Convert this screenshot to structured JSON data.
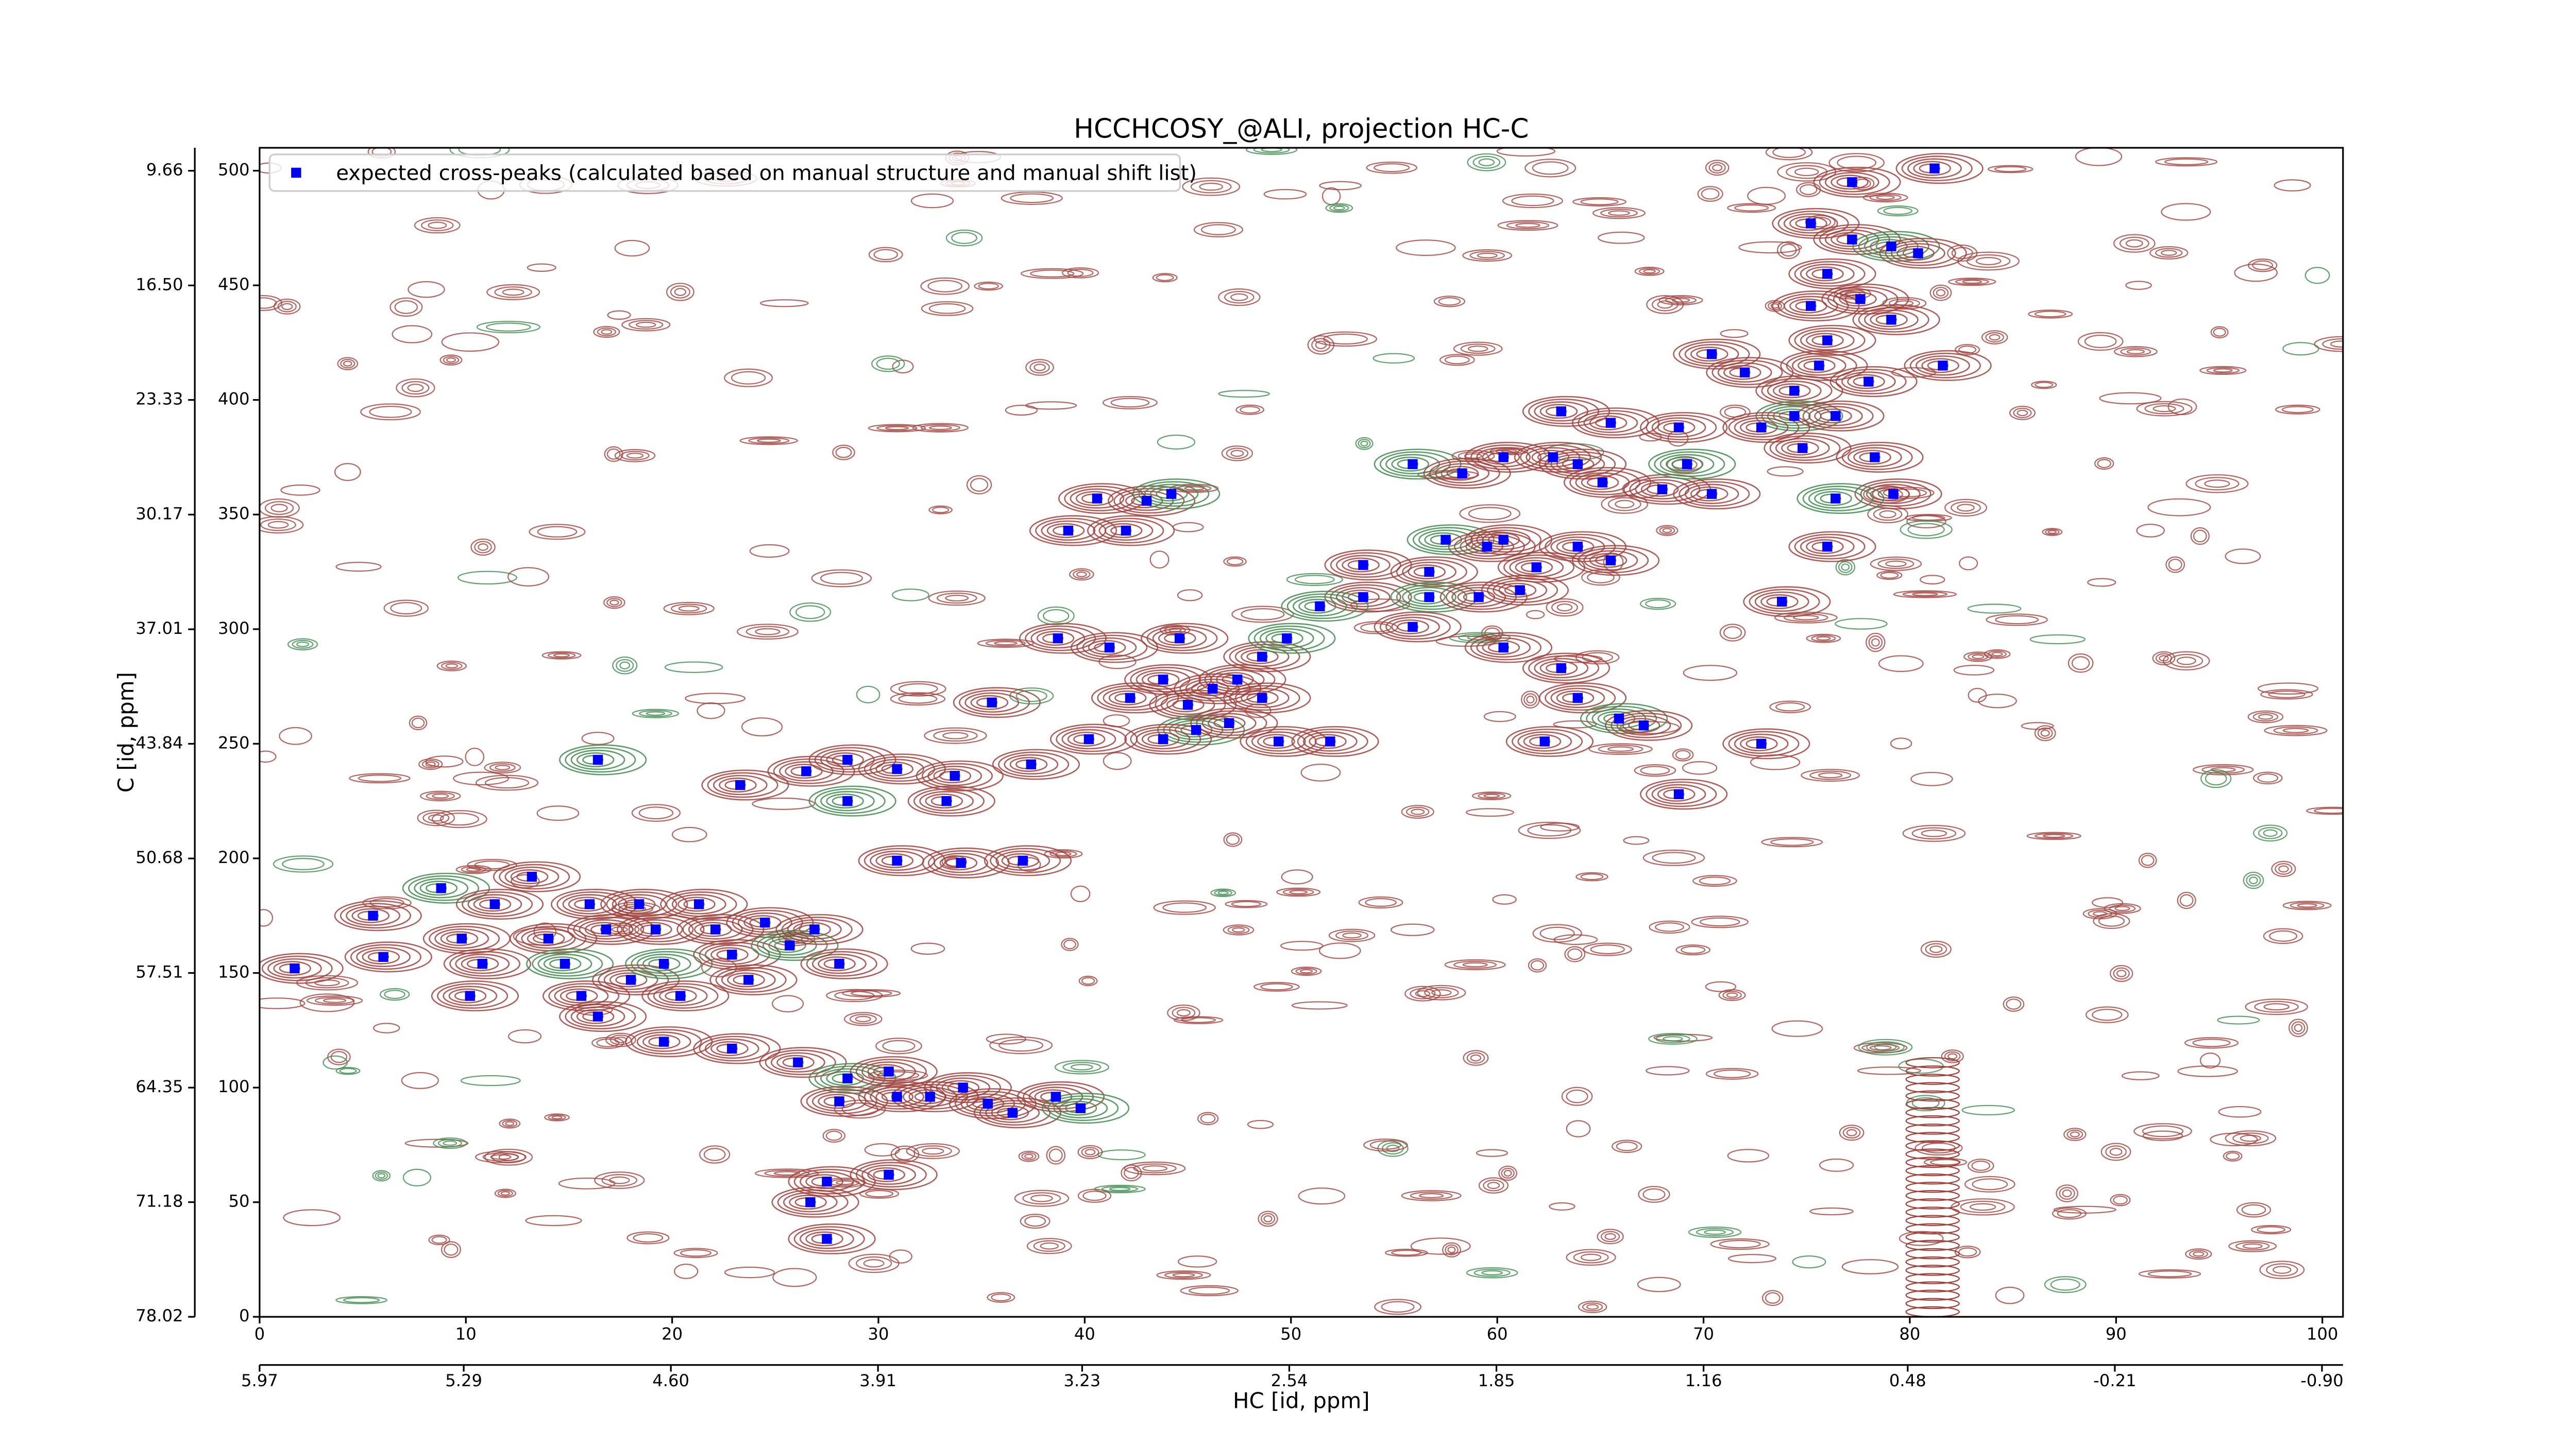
{
  "chart_data": {
    "type": "scatter",
    "title": "HCCHCOSY_@ALI, projection HC-C",
    "xlabel": "HC [id, ppm]",
    "ylabel": "C [id, ppm]",
    "legend": "upper left",
    "xlim": [
      0,
      101
    ],
    "ylim": [
      0,
      510
    ],
    "xticks": [
      0,
      10,
      20,
      30,
      40,
      50,
      60,
      70,
      80,
      90,
      100
    ],
    "yticks": [
      0,
      50,
      100,
      150,
      200,
      250,
      300,
      350,
      400,
      450,
      500
    ],
    "x2lim": [
      5.97,
      -0.97
    ],
    "x2ticks": [
      5.97,
      5.29,
      {
        "value": 4.6,
        "label": "4.60"
      },
      3.91,
      3.23,
      2.54,
      1.85,
      1.16,
      0.48,
      -0.21,
      {
        "value": -0.9,
        "label": "-0.90"
      }
    ],
    "y2lim": [
      78.02,
      8.29
    ],
    "y2ticks": [
      9.66,
      {
        "value": 16.5,
        "label": "16.50"
      },
      23.33,
      30.17,
      37.01,
      43.84,
      50.68,
      57.51,
      64.35,
      71.18,
      78.02
    ],
    "series": [
      {
        "name": "expected cross-peaks (calculated based on manual structure and manual shift list)",
        "color": "#0000ff",
        "x": [
          1.7,
          5.5,
          6.0,
          8.8,
          9.8,
          10.8,
          10.2,
          11.4,
          13.2,
          14.0,
          14.8,
          15.6,
          16.0,
          16.8,
          18.0,
          18.4,
          19.2,
          19.6,
          20.4,
          21.3,
          22.1,
          22.9,
          23.7,
          24.5,
          25.7,
          26.9,
          28.1,
          16.4,
          19.6,
          22.9,
          26.1,
          28.5,
          30.5,
          32.5,
          34.1,
          35.3,
          36.5,
          38.6,
          39.8,
          28.1,
          30.9,
          27.5,
          30.5,
          27.5,
          26.7,
          16.4,
          23.3,
          26.5,
          28.5,
          30.9,
          33.7,
          37.4,
          28.5,
          33.3,
          30.9,
          34.0,
          37.0,
          40.6,
          43.0,
          44.2,
          39.2,
          42.0,
          38.7,
          41.2,
          44.6,
          48.6,
          49.8,
          42.2,
          43.8,
          45.0,
          46.2,
          47.4,
          48.6,
          45.4,
          47.0,
          40.2,
          43.8,
          49.4,
          51.9,
          35.5,
          55.9,
          58.3,
          60.3,
          62.7,
          63.9,
          65.1,
          68.0,
          69.2,
          70.4,
          63.1,
          65.5,
          68.8,
          53.5,
          56.7,
          57.5,
          59.5,
          60.3,
          61.9,
          63.9,
          65.5,
          53.5,
          56.7,
          59.1,
          61.1,
          55.9,
          60.3,
          63.1,
          63.9,
          65.9,
          67.1,
          62.3,
          68.8,
          72.8,
          73.8,
          76.0,
          51.4,
          70.4,
          72.0,
          74.4,
          75.6,
          76.0,
          78.0,
          74.4,
          76.4,
          75.2,
          77.6,
          79.1,
          76.0,
          77.2,
          79.1,
          80.4,
          75.2,
          77.2,
          81.2,
          81.6,
          79.2,
          76.4,
          78.3,
          72.8,
          74.8
        ],
        "y": [
          152,
          175,
          157,
          187,
          165,
          154,
          140,
          180,
          192,
          165,
          154,
          140,
          180,
          169,
          147,
          180,
          169,
          154,
          140,
          180,
          169,
          158,
          147,
          172,
          162,
          169,
          154,
          131,
          120,
          117,
          111,
          104,
          107,
          96,
          100,
          93,
          89,
          96,
          91,
          94,
          96,
          59,
          62,
          34,
          50,
          243,
          232,
          238,
          243,
          239,
          236,
          241,
          225,
          225,
          199,
          198,
          199,
          357,
          356,
          359,
          343,
          343,
          296,
          292,
          296,
          288,
          296,
          270,
          278,
          267,
          274,
          278,
          270,
          256,
          259,
          252,
          252,
          251,
          251,
          268,
          372,
          368,
          375,
          375,
          372,
          364,
          361,
          372,
          359,
          395,
          390,
          388,
          328,
          325,
          339,
          336,
          339,
          327,
          336,
          330,
          314,
          314,
          314,
          317,
          301,
          292,
          283,
          270,
          261,
          258,
          251,
          228,
          250,
          312,
          336,
          310,
          420,
          412,
          404,
          415,
          426,
          408,
          393,
          393,
          441,
          444,
          435,
          455,
          470,
          467,
          464,
          477,
          495,
          501,
          415,
          359,
          357,
          375,
          388,
          379
        ]
      }
    ]
  }
}
